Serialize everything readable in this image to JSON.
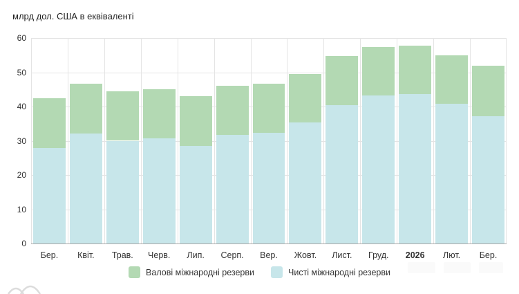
{
  "chart_data": {
    "type": "bar",
    "stacked": true,
    "title": "млрд дол. США в еквіваленті",
    "categories": [
      "Бер.",
      "Квіт.",
      "Трав.",
      "Черв.",
      "Лип.",
      "Серп.",
      "Вер.",
      "Жовт.",
      "Лист.",
      "Груд.",
      "2026",
      "Лют.",
      "Бер."
    ],
    "bold_category": "2026",
    "series": [
      {
        "name": "Валові міжнародні резерви",
        "role": "total",
        "color": "#b3d9b3",
        "values": [
          42.4,
          46.7,
          44.5,
          45.1,
          43.0,
          46.0,
          46.6,
          49.5,
          54.8,
          57.4,
          57.7,
          54.9,
          52.0
        ]
      },
      {
        "name": "Чисті міжнародні резерви",
        "role": "base",
        "color": "#c7e6ea",
        "values": [
          27.9,
          32.2,
          30.0,
          30.7,
          28.4,
          31.7,
          32.4,
          35.4,
          40.5,
          43.2,
          43.6,
          40.9,
          37.1
        ]
      }
    ],
    "xlabel": "",
    "ylabel": "",
    "ylim": [
      0,
      60
    ],
    "yticks": [
      0,
      10,
      20,
      30,
      40,
      50,
      60
    ],
    "grid": true,
    "legend_position": "bottom"
  },
  "colors": {
    "gridline": "#e4e4e4",
    "axis_line": "#a9a9a9",
    "label_text": "#333333"
  }
}
